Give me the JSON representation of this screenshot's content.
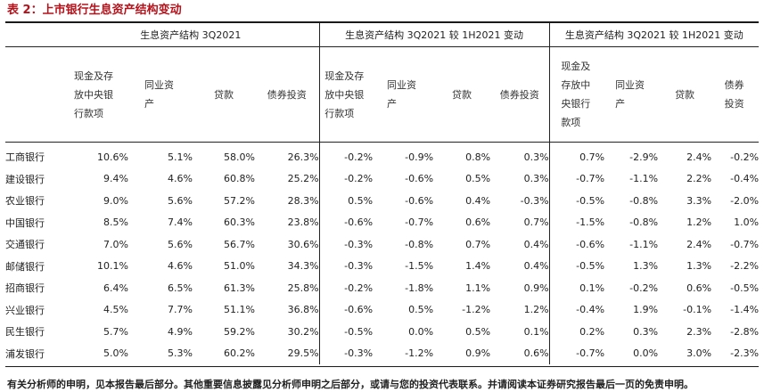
{
  "title": "表 2：上市银行生息资产结构变动",
  "group_headers": [
    "生息资产结构 3Q2021",
    "生息资产结构 3Q2021 较 1H2021 变动",
    "生息资产结构 3Q2021 较 1H2021 变动"
  ],
  "group1_subheaders": [
    "现金及存放中央银行款项",
    "同业资产",
    "贷款",
    "债券投资"
  ],
  "group2_subheaders": [
    "现金及存放中央银行款项",
    "同业资产",
    "贷款",
    "债券投资"
  ],
  "group3_subheaders": [
    "现金及存放中央银行款项",
    "同业资产",
    "贷款",
    "债券投资"
  ],
  "rows": [
    {
      "bank": "工商银行",
      "values": [
        "10.6%",
        "5.1%",
        "58.0%",
        "26.3%",
        "-0.2%",
        "-0.9%",
        "0.8%",
        "0.3%",
        "0.7%",
        "-2.9%",
        "2.4%",
        "-0.2%"
      ]
    },
    {
      "bank": "建设银行",
      "values": [
        "9.4%",
        "4.6%",
        "60.8%",
        "25.2%",
        "-0.2%",
        "-0.6%",
        "0.5%",
        "0.3%",
        "-0.7%",
        "-1.1%",
        "2.2%",
        "-0.4%"
      ]
    },
    {
      "bank": "农业银行",
      "values": [
        "9.0%",
        "5.6%",
        "57.2%",
        "28.3%",
        "0.5%",
        "-0.6%",
        "0.4%",
        "-0.3%",
        "-0.5%",
        "-0.8%",
        "3.3%",
        "-2.0%"
      ]
    },
    {
      "bank": "中国银行",
      "values": [
        "8.5%",
        "7.4%",
        "60.3%",
        "23.8%",
        "-0.6%",
        "-0.7%",
        "0.6%",
        "0.7%",
        "-1.5%",
        "-0.8%",
        "1.2%",
        "1.0%"
      ]
    },
    {
      "bank": "交通银行",
      "values": [
        "7.0%",
        "5.6%",
        "56.7%",
        "30.6%",
        "-0.3%",
        "-0.8%",
        "0.7%",
        "0.4%",
        "-0.6%",
        "-1.1%",
        "2.4%",
        "-0.7%"
      ]
    },
    {
      "bank": "邮储银行",
      "values": [
        "10.1%",
        "4.6%",
        "51.0%",
        "34.3%",
        "-0.3%",
        "-1.5%",
        "1.4%",
        "0.4%",
        "-0.5%",
        "1.3%",
        "1.3%",
        "-2.2%"
      ]
    },
    {
      "bank": "招商银行",
      "values": [
        "6.4%",
        "6.5%",
        "61.3%",
        "25.8%",
        "-0.2%",
        "-1.8%",
        "1.1%",
        "0.9%",
        "0.1%",
        "-0.2%",
        "0.6%",
        "-0.5%"
      ]
    },
    {
      "bank": "兴业银行",
      "values": [
        "4.5%",
        "7.7%",
        "51.1%",
        "36.8%",
        "-0.6%",
        "0.5%",
        "-1.2%",
        "1.2%",
        "-0.4%",
        "1.9%",
        "-0.1%",
        "-1.4%"
      ]
    },
    {
      "bank": "民生银行",
      "values": [
        "5.7%",
        "4.9%",
        "59.2%",
        "30.2%",
        "-0.5%",
        "0.0%",
        "0.5%",
        "0.1%",
        "0.2%",
        "0.3%",
        "2.3%",
        "-2.8%"
      ]
    },
    {
      "bank": "浦发银行",
      "values": [
        "5.0%",
        "5.3%",
        "60.2%",
        "29.5%",
        "-0.3%",
        "-1.2%",
        "0.9%",
        "0.6%",
        "-0.7%",
        "0.0%",
        "3.0%",
        "-2.3%"
      ]
    }
  ],
  "footer": "有关分析师的申明，见本报告最后部分。其他重要信息披露见分析师申明之后部分，或请与您的投资代表联系。并请阅读本证券研究报告最后一页的免责申明。",
  "colors": {
    "title": "#b5121b",
    "rule": "#1a1a1a",
    "text": "#222222"
  }
}
